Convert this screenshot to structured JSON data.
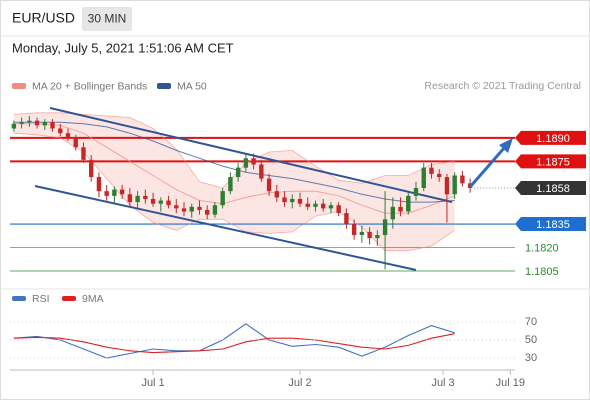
{
  "header": {
    "symbol": "EUR/USD",
    "timeframe": "30 MIN",
    "timestamp": "Monday, July 5, 2021 1:51:06 AM CET",
    "credit": "Research © 2021 Trading Central"
  },
  "chart_data": [
    {
      "type": "candlestick",
      "up_color": "#2e7d32",
      "down_color": "#c62828",
      "xlim": [
        -0.5,
        64.8
      ],
      "ylim": [
        1.1798,
        1.1911
      ],
      "open": [
        1.1896,
        1.1899,
        1.19,
        1.1901,
        1.1898,
        1.19,
        1.1896,
        1.1893,
        1.189,
        1.1884,
        1.1876,
        1.1865,
        1.1856,
        1.1853,
        1.1857,
        1.1854,
        1.1849,
        1.1853,
        1.1851,
        1.1848,
        1.185,
        1.1847,
        1.1845,
        1.1843,
        1.1846,
        1.1844,
        1.1841,
        1.1847,
        1.1856,
        1.1865,
        1.1871,
        1.1877,
        1.1873,
        1.1864,
        1.1856,
        1.1852,
        1.1849,
        1.1851,
        1.1848,
        1.1846,
        1.1848,
        1.1845,
        1.1847,
        1.1842,
        1.1835,
        1.1828,
        1.183,
        1.1826,
        1.1828,
        1.1838,
        1.1846,
        1.1843,
        1.1853,
        1.1858,
        1.1871,
        1.1867,
        1.1865,
        1.1854,
        1.1866,
        1.1861
      ],
      "high": [
        1.1901,
        1.1903,
        1.1904,
        1.1903,
        1.1902,
        1.1902,
        1.1899,
        1.1896,
        1.1892,
        1.1887,
        1.1879,
        1.1868,
        1.186,
        1.1859,
        1.186,
        1.1858,
        1.1856,
        1.1857,
        1.1855,
        1.1852,
        1.1853,
        1.1851,
        1.1849,
        1.1848,
        1.185,
        1.1847,
        1.1849,
        1.1858,
        1.1868,
        1.1874,
        1.188,
        1.188,
        1.1876,
        1.1867,
        1.186,
        1.1856,
        1.1854,
        1.1855,
        1.1852,
        1.185,
        1.1851,
        1.1849,
        1.1849,
        1.1845,
        1.1838,
        1.1834,
        1.1833,
        1.1831,
        1.1856,
        1.1852,
        1.1852,
        1.1855,
        1.1862,
        1.1874,
        1.1874,
        1.187,
        1.1867,
        1.1868,
        1.1869,
        1.1864
      ],
      "low": [
        1.1894,
        1.1896,
        1.1897,
        1.1896,
        1.1895,
        1.1894,
        1.1891,
        1.1888,
        1.1882,
        1.1874,
        1.1862,
        1.1852,
        1.185,
        1.1848,
        1.1851,
        1.1846,
        1.1845,
        1.1848,
        1.1846,
        1.1843,
        1.1845,
        1.1842,
        1.184,
        1.1839,
        1.1841,
        1.1838,
        1.1839,
        1.1845,
        1.1854,
        1.1862,
        1.1868,
        1.187,
        1.1862,
        1.1853,
        1.1849,
        1.1846,
        1.1845,
        1.1846,
        1.1844,
        1.1843,
        1.1843,
        1.1842,
        1.184,
        1.1832,
        1.1825,
        1.1823,
        1.1822,
        1.1821,
        1.1806,
        1.1832,
        1.184,
        1.1841,
        1.185,
        1.1856,
        1.1864,
        1.1862,
        1.1836,
        1.1851,
        1.1859,
        1.1855
      ],
      "close": [
        1.1899,
        1.19,
        1.1901,
        1.1898,
        1.19,
        1.1896,
        1.1893,
        1.189,
        1.1884,
        1.1876,
        1.1865,
        1.1856,
        1.1853,
        1.1857,
        1.1854,
        1.1849,
        1.1853,
        1.1851,
        1.1848,
        1.185,
        1.1847,
        1.1845,
        1.1843,
        1.1846,
        1.1844,
        1.1841,
        1.1847,
        1.1856,
        1.1865,
        1.1871,
        1.1877,
        1.1873,
        1.1864,
        1.1856,
        1.1852,
        1.1849,
        1.1851,
        1.1848,
        1.1846,
        1.1848,
        1.1845,
        1.1847,
        1.1842,
        1.1835,
        1.1828,
        1.183,
        1.1826,
        1.1828,
        1.1838,
        1.1846,
        1.1843,
        1.1853,
        1.1858,
        1.1871,
        1.1867,
        1.1865,
        1.1854,
        1.1866,
        1.1861,
        1.1858
      ],
      "overlay_x": [
        0,
        3,
        6,
        9,
        12,
        15,
        18,
        21,
        24,
        27,
        30,
        33,
        36,
        39,
        42,
        45,
        48,
        51,
        54,
        57
      ],
      "overlays": [
        {
          "name": "MA 20 + Bollinger Bands",
          "color": "#f28b82",
          "values": [
            1.1899,
            1.1899,
            1.1898,
            1.1893,
            1.1884,
            1.1875,
            1.1866,
            1.1857,
            1.185,
            1.1848,
            1.1852,
            1.1855,
            1.1856,
            1.1856,
            1.1853,
            1.1847,
            1.1842,
            1.1842,
            1.1847,
            1.1853
          ],
          "upper": [
            1.1905,
            1.1906,
            1.1906,
            1.1905,
            1.1904,
            1.1903,
            1.1896,
            1.1883,
            1.1862,
            1.1858,
            1.1874,
            1.1881,
            1.1882,
            1.1872,
            1.1863,
            1.1861,
            1.1866,
            1.1866,
            1.1873,
            1.1875
          ],
          "lower": [
            1.1893,
            1.1892,
            1.189,
            1.1881,
            1.1864,
            1.1847,
            1.1836,
            1.1831,
            1.1838,
            1.1838,
            1.183,
            1.1829,
            1.183,
            1.184,
            1.1843,
            1.1833,
            1.1818,
            1.1818,
            1.1821,
            1.1831
          ]
        },
        {
          "name": "MA 50",
          "color": "#2f5597",
          "values": [
            1.19,
            1.19,
            1.19,
            1.1899,
            1.1897,
            1.1893,
            1.1888,
            1.1882,
            1.1877,
            1.1872,
            1.1868,
            1.1866,
            1.1864,
            1.1861,
            1.1858,
            1.1854,
            1.1851,
            1.1849,
            1.1849,
            1.185
          ]
        }
      ],
      "levels": [
        {
          "value": 1.189,
          "label": "1.1890",
          "color": "#e01010",
          "style": "badge"
        },
        {
          "value": 1.1875,
          "label": "1.1875",
          "color": "#e01010",
          "style": "badge"
        },
        {
          "value": 1.1858,
          "label": "1.1858",
          "color": "#333333",
          "style": "current"
        },
        {
          "value": 1.1835,
          "label": "1.1835",
          "color": "#1e6fd0",
          "style": "badge"
        },
        {
          "value": 1.182,
          "label": "1.1820",
          "color": "#2e8b2e",
          "style": "plain"
        },
        {
          "value": 1.1805,
          "label": "1.1805",
          "color": "#2e8b2e",
          "style": "plain"
        }
      ]
    },
    {
      "type": "line",
      "xlim": [
        -0.5,
        64.8
      ],
      "ylim": [
        16.7,
        83.3
      ],
      "yticks": [
        70,
        50,
        30
      ],
      "xticks": [
        {
          "value": 18,
          "label": "Jul 1"
        },
        {
          "value": 37,
          "label": "Jul 2"
        },
        {
          "value": 55.5,
          "label": "Jul 3"
        },
        {
          "value": 64.2,
          "label": "Jul 19"
        }
      ],
      "x": [
        0,
        3,
        6,
        9,
        12,
        15,
        18,
        21,
        24,
        27,
        30,
        33,
        36,
        39,
        42,
        45,
        48,
        51,
        54,
        57
      ],
      "series": [
        {
          "name": "RSI",
          "color": "#4472c4",
          "values": [
            52,
            54,
            50,
            40,
            30,
            35,
            40,
            38,
            38,
            50,
            68,
            50,
            43,
            45,
            42,
            32,
            42,
            55,
            66,
            58
          ]
        },
        {
          "name": "9MA",
          "color": "#e02020",
          "values": [
            52,
            53,
            52,
            48,
            42,
            38,
            36,
            37,
            38,
            40,
            48,
            52,
            52,
            50,
            46,
            42,
            40,
            44,
            52,
            57
          ]
        }
      ]
    }
  ]
}
